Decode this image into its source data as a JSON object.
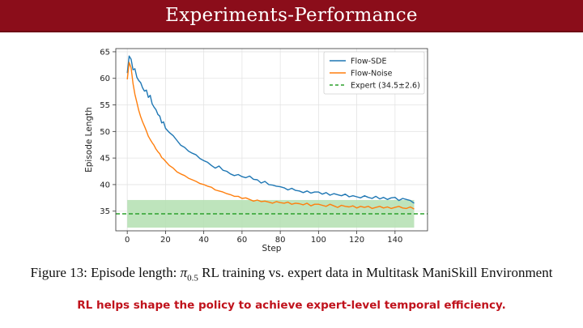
{
  "slide": {
    "title": "Experiments-Performance",
    "caption_pre": "Figure 13: Episode length: ",
    "caption_symbol": "π",
    "caption_subscript": "0.5",
    "caption_post": " RL training vs. expert data in Multitask ManiSkill Environment",
    "takeaway": "RL helps shape the policy to achieve expert-level temporal efficiency.",
    "accent_color": "#8b0d1a",
    "takeaway_color": "#c0121c"
  },
  "chart_data": {
    "type": "line",
    "title": "",
    "xlabel": "Step",
    "ylabel": "Episode Length",
    "xlim": [
      -6,
      157
    ],
    "ylim": [
      31.3,
      65.6
    ],
    "xticks": [
      0,
      20,
      40,
      60,
      80,
      100,
      120,
      140
    ],
    "yticks": [
      35,
      40,
      45,
      50,
      55,
      60,
      65
    ],
    "grid": true,
    "legend_position": "top-right",
    "series": [
      {
        "name": "Flow-SDE",
        "color": "#1f77b4",
        "x": [
          0,
          1,
          2,
          3,
          4,
          5,
          6,
          7,
          8,
          9,
          10,
          11,
          12,
          13,
          14,
          15,
          16,
          17,
          18,
          19,
          20,
          22,
          24,
          26,
          28,
          30,
          32,
          34,
          36,
          38,
          40,
          42,
          44,
          46,
          48,
          50,
          52,
          54,
          56,
          58,
          60,
          62,
          64,
          66,
          68,
          70,
          72,
          74,
          76,
          78,
          80,
          82,
          84,
          86,
          88,
          90,
          92,
          94,
          96,
          98,
          100,
          102,
          104,
          106,
          108,
          110,
          112,
          114,
          116,
          118,
          120,
          122,
          124,
          126,
          128,
          130,
          132,
          134,
          136,
          138,
          140,
          142,
          144,
          146,
          148,
          150
        ],
        "y": [
          61.0,
          64.2,
          63.6,
          61.6,
          61.8,
          60.2,
          59.6,
          59.2,
          58.2,
          57.6,
          57.8,
          56.4,
          56.8,
          55.2,
          54.6,
          54.1,
          53.2,
          52.9,
          51.6,
          51.8,
          50.6,
          49.8,
          49.2,
          48.3,
          47.4,
          47.0,
          46.3,
          45.9,
          45.6,
          44.9,
          44.5,
          44.2,
          43.6,
          43.1,
          43.5,
          42.7,
          42.5,
          42.0,
          41.7,
          41.9,
          41.5,
          41.3,
          41.6,
          41.0,
          40.9,
          40.3,
          40.6,
          40.0,
          39.9,
          39.7,
          39.6,
          39.4,
          39.0,
          39.3,
          38.9,
          38.8,
          38.5,
          38.8,
          38.4,
          38.6,
          38.6,
          38.2,
          38.5,
          38.0,
          38.3,
          38.1,
          37.9,
          38.2,
          37.7,
          37.9,
          37.7,
          37.5,
          37.9,
          37.6,
          37.4,
          37.8,
          37.3,
          37.6,
          37.2,
          37.5,
          37.6,
          37.0,
          37.4,
          37.2,
          37.0,
          36.5
        ]
      },
      {
        "name": "Flow-Noise",
        "color": "#ff7f0e",
        "x": [
          0,
          1,
          2,
          3,
          4,
          5,
          6,
          7,
          8,
          9,
          10,
          11,
          12,
          13,
          14,
          15,
          16,
          17,
          18,
          19,
          20,
          22,
          24,
          26,
          28,
          30,
          32,
          34,
          36,
          38,
          40,
          42,
          44,
          46,
          48,
          50,
          52,
          54,
          56,
          58,
          60,
          62,
          64,
          66,
          68,
          70,
          72,
          74,
          76,
          78,
          80,
          82,
          84,
          86,
          88,
          90,
          92,
          94,
          96,
          98,
          100,
          102,
          104,
          106,
          108,
          110,
          112,
          114,
          116,
          118,
          120,
          122,
          124,
          126,
          128,
          130,
          132,
          134,
          136,
          138,
          140,
          142,
          144,
          146,
          148,
          150
        ],
        "y": [
          59.8,
          63.0,
          62.0,
          59.0,
          57.0,
          55.5,
          54.0,
          52.8,
          51.8,
          51.0,
          50.1,
          49.1,
          48.5,
          47.9,
          47.4,
          46.7,
          46.2,
          45.8,
          45.1,
          44.8,
          44.4,
          43.6,
          43.1,
          42.4,
          42.0,
          41.7,
          41.2,
          40.9,
          40.6,
          40.2,
          40.0,
          39.7,
          39.5,
          39.0,
          38.8,
          38.6,
          38.3,
          38.1,
          37.8,
          37.8,
          37.4,
          37.5,
          37.2,
          36.9,
          37.1,
          36.8,
          36.9,
          36.7,
          36.5,
          36.8,
          36.6,
          36.5,
          36.7,
          36.3,
          36.5,
          36.4,
          36.2,
          36.5,
          36.0,
          36.3,
          36.3,
          36.1,
          35.9,
          36.3,
          36.0,
          35.7,
          36.1,
          35.9,
          35.8,
          36.0,
          35.6,
          35.9,
          35.7,
          35.9,
          35.5,
          35.7,
          35.9,
          35.6,
          35.8,
          35.5,
          35.7,
          35.9,
          35.6,
          35.5,
          35.8,
          35.4
        ]
      }
    ],
    "reference_line": {
      "name": "Expert (34.5±2.6)",
      "value": 34.5,
      "std": 2.6,
      "color": "#2ca02c",
      "band_color": "#b3dfb0",
      "x_start": 0,
      "x_end": 150
    }
  }
}
